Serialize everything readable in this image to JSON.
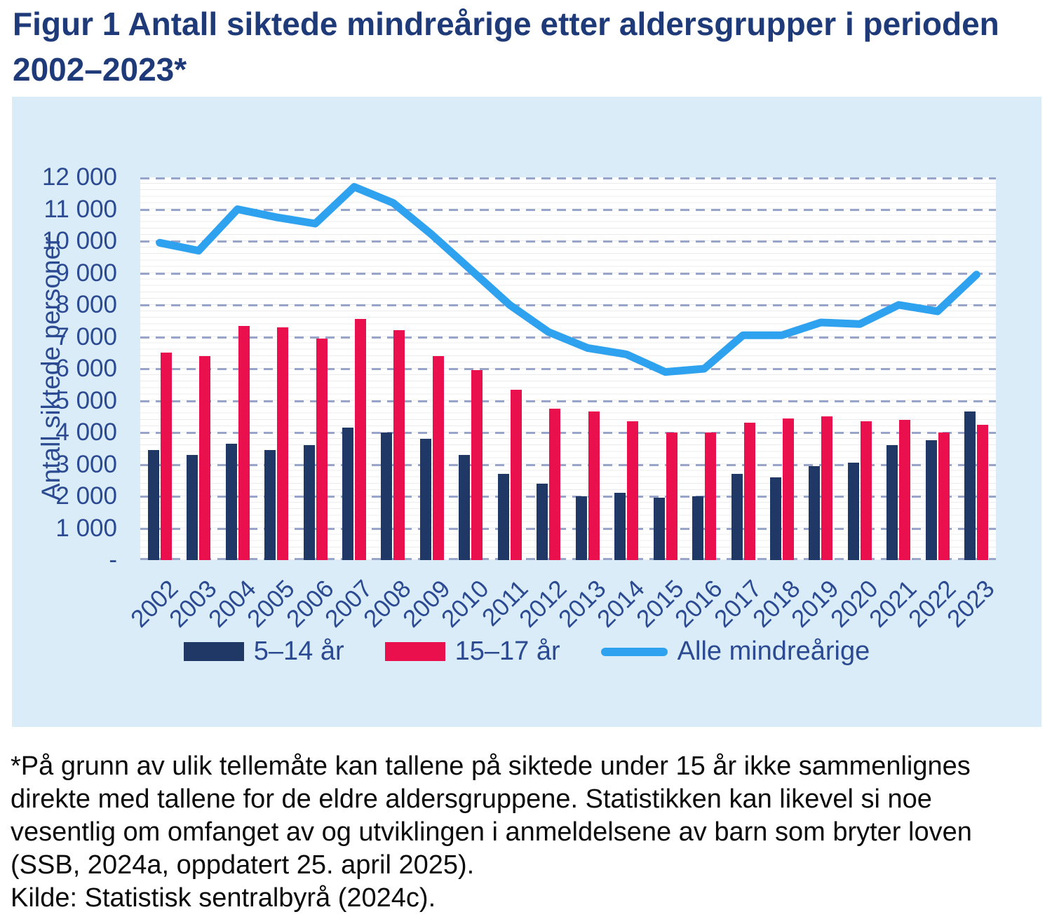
{
  "page": {
    "title_line1": "Figur 1 Antall siktede mindreårige etter aldersgrupper i perioden",
    "title_line2": "2002–2023*",
    "footnote_lines": [
      "*På grunn av ulik tellemåte kan tallene på siktede under 15 år ikke sammenlignes",
      "direkte med tallene for de eldre aldersgruppene. Statistikken kan likevel si noe",
      "vesentlig om omfanget av og utviklingen i anmeldelsene av barn som bryter loven",
      "(SSB, 2024a, oppdatert 25. april 2025).",
      "Kilde: Statistisk sentralbyrå (2024c)."
    ]
  },
  "colors": {
    "panel_background": "#d9ecf8",
    "plot_background": "#ffffff",
    "navy_bar": "#1f3865",
    "red_bar": "#e9104d",
    "blue_line": "#2fa2ef",
    "major_gridline": "#98a5c8",
    "minor_gridline": "#ececec",
    "axis_text": "#2b4a91",
    "title_text": "#1e3a78"
  },
  "chart_data": {
    "type": "bar+line",
    "title": "Figur 1 Antall siktede mindreårige etter aldersgrupper i perioden 2002–2023*",
    "xlabel": "",
    "ylabel": "Antall siktede personer",
    "ylim": [
      0,
      12000
    ],
    "ytick_step": 1000,
    "ytick_labels_top_to_bottom": [
      "12 000",
      "11 000",
      "10 000",
      "9 000",
      "8 000",
      "7 000",
      "6 000",
      "5 000",
      "4 000",
      "3 000",
      "2 000",
      "1 000",
      "-"
    ],
    "grid": "horizontal dashed major lines every 1000, faint solid minor lines every 200",
    "legend_position": "bottom",
    "categories": [
      "2002",
      "2003",
      "2004",
      "2005",
      "2006",
      "2007",
      "2008",
      "2009",
      "2010",
      "2011",
      "2012",
      "2013",
      "2014",
      "2015",
      "2016",
      "2017",
      "2018",
      "2019",
      "2020",
      "2021",
      "2022",
      "2023"
    ],
    "series": [
      {
        "name": "5–14 år",
        "type": "bar",
        "color": "#1f3865",
        "values": [
          3450,
          3300,
          3650,
          3450,
          3600,
          4150,
          4000,
          3800,
          3300,
          2700,
          2400,
          2000,
          2100,
          1950,
          2000,
          2700,
          2600,
          2950,
          3050,
          3600,
          3750,
          4650
        ]
      },
      {
        "name": "15–17 år",
        "type": "bar",
        "color": "#e9104d",
        "values": [
          6500,
          6400,
          7350,
          7300,
          6950,
          7550,
          7200,
          6400,
          5950,
          5350,
          4750,
          4650,
          4350,
          4000,
          4000,
          4300,
          4450,
          4500,
          4350,
          4400,
          4000,
          4250
        ]
      },
      {
        "name": "Alle mindreårige",
        "type": "line",
        "color": "#2fa2ef",
        "values": [
          9950,
          9700,
          11000,
          10750,
          10550,
          11700,
          11200,
          10200,
          9100,
          8000,
          7150,
          6650,
          6450,
          5900,
          6000,
          7050,
          7050,
          7450,
          7400,
          8000,
          7800,
          8950
        ]
      }
    ]
  }
}
